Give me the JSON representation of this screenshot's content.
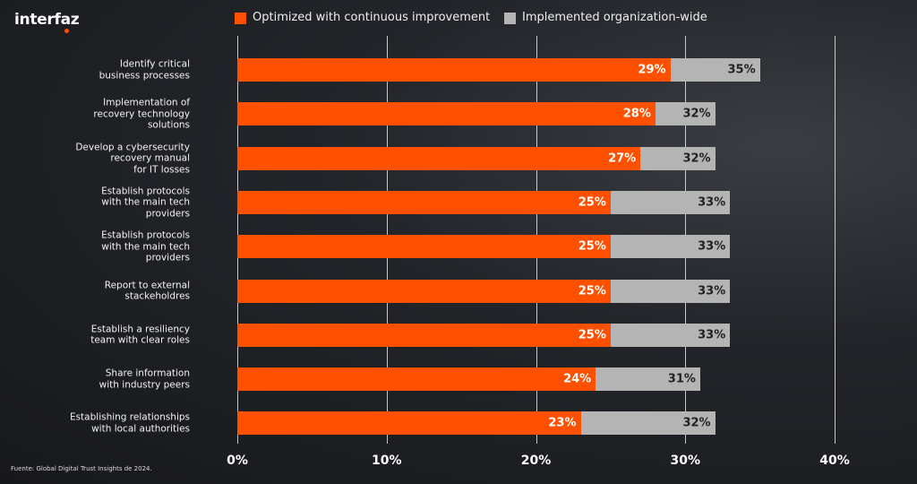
{
  "brand": "interfaz",
  "source": "Fuente: Global Digital Trust Insights de 2024.",
  "chart_data": {
    "type": "bar",
    "orientation": "horizontal",
    "overlap": true,
    "categories": [
      "Identify critical\nbusiness processes",
      "Implementation of\nrecovery technology\nsolutions",
      "Develop a cybersecurity\nrecovery manual\nfor IT losses",
      "Establish protocols\nwith the main tech\nproviders",
      "Establish protocols\nwith the main tech\nproviders",
      "Report to external\nstackeholdres",
      "Establish a resiliency\nteam with clear roles",
      "Share information\nwith industry peers",
      "Establishing relationships\nwith local authorities"
    ],
    "series": [
      {
        "name": "Optimized with continuous improvement",
        "color": "#ff5000",
        "values": [
          29,
          28,
          27,
          25,
          25,
          25,
          25,
          24,
          23
        ],
        "value_labels": [
          "29%",
          "28%",
          "27%",
          "25%",
          "25%",
          "25%",
          "25%",
          "24%",
          "23%"
        ]
      },
      {
        "name": "Implemented organization-wide",
        "color": "#b4b4b4",
        "values": [
          35,
          32,
          32,
          33,
          33,
          33,
          33,
          31,
          32
        ],
        "value_labels": [
          "35%",
          "32%",
          "32%",
          "33%",
          "33%",
          "33%",
          "33%",
          "31%",
          "32%"
        ]
      }
    ],
    "xlim": [
      0,
      40
    ],
    "xticks": [
      {
        "value": 0,
        "label": "0%"
      },
      {
        "value": 10,
        "label": "10%"
      },
      {
        "value": 20,
        "label": "20%"
      },
      {
        "value": 30,
        "label": "30%"
      },
      {
        "value": 40,
        "label": "40%"
      }
    ],
    "grid": true
  }
}
